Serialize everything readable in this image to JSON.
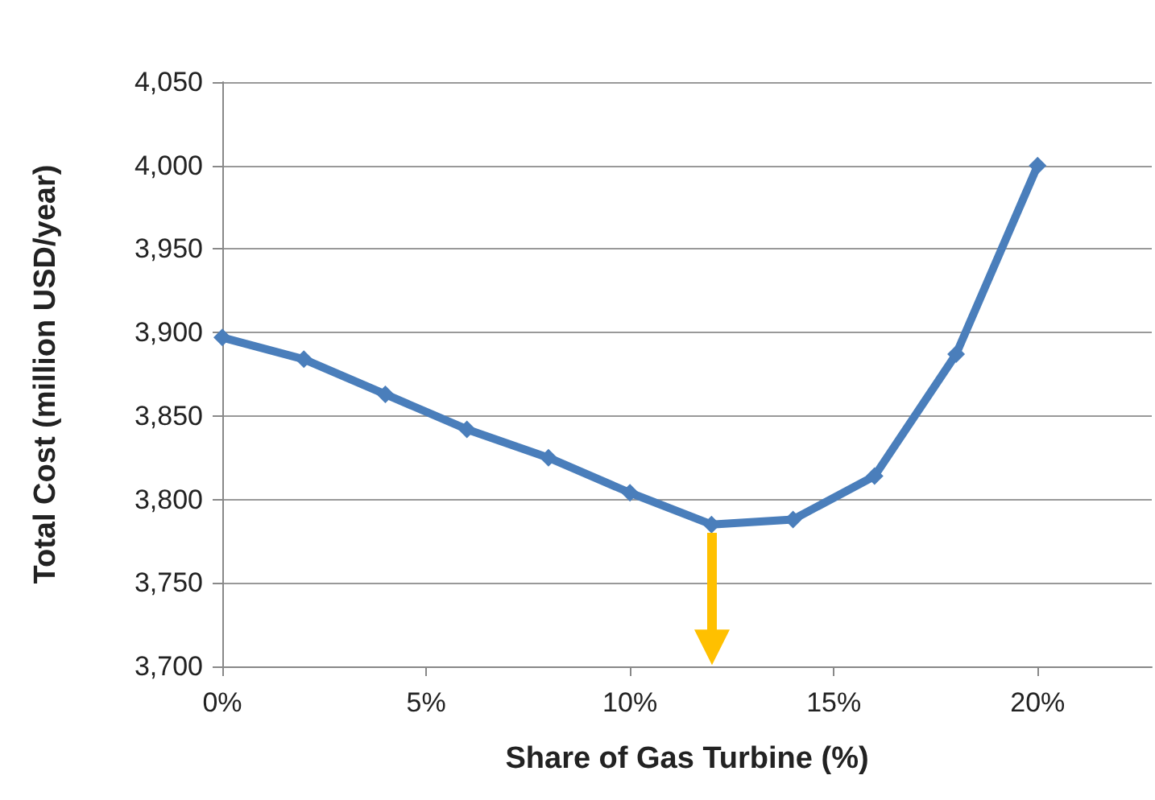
{
  "chart_data": {
    "type": "line",
    "xlabel": "Share of Gas Turbine (%)",
    "ylabel": "Total Cost (million USD/year)",
    "x": [
      0,
      2,
      4,
      6,
      8,
      10,
      12,
      14,
      16,
      18,
      20
    ],
    "series": [
      {
        "color": "#4a7ebb",
        "values": [
          3897,
          3884,
          3863,
          3842,
          3825,
          3804,
          3785,
          3788,
          3814,
          3887,
          4000
        ]
      }
    ],
    "xlim": [
      0,
      22.8
    ],
    "xticks": [
      {
        "value": 0,
        "label": "0%"
      },
      {
        "value": 5,
        "label": "5%"
      },
      {
        "value": 10,
        "label": "10%"
      },
      {
        "value": 15,
        "label": "15%"
      },
      {
        "value": 20,
        "label": "20%"
      }
    ],
    "ylim": [
      3700,
      4050
    ],
    "yticks": [
      {
        "value": 3700,
        "label": "3,700"
      },
      {
        "value": 3750,
        "label": "3,750"
      },
      {
        "value": 3800,
        "label": "3,800"
      },
      {
        "value": 3850,
        "label": "3,850"
      },
      {
        "value": 3900,
        "label": "3,900"
      },
      {
        "value": 3950,
        "label": "3,950"
      },
      {
        "value": 4000,
        "label": "4,000"
      },
      {
        "value": 4050,
        "label": "4,050"
      }
    ],
    "grid": "y",
    "marker": "diamond",
    "line_style": "solid"
  }
}
